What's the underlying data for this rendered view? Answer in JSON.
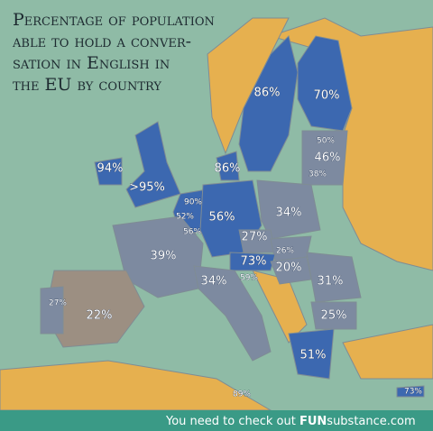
{
  "title": {
    "lines": [
      "Percentage of population",
      "able to hold a conver-",
      "sation in English in",
      "the EU by country"
    ]
  },
  "labels": [
    "86%",
    "70%",
    "94%",
    ">95%",
    "86%",
    "50%",
    "46%",
    "38%",
    "90%",
    "52%",
    "56%",
    "56%",
    "34%",
    "27%",
    "26%",
    "39%",
    "73%",
    "20%",
    "31%",
    "34%",
    "59%",
    "27%",
    "22%",
    "25%",
    "51%",
    "89%",
    "73%"
  ],
  "footer": {
    "text": "You need to check out",
    "brand_bold": "FUN",
    "brand": "substance.com"
  }
}
